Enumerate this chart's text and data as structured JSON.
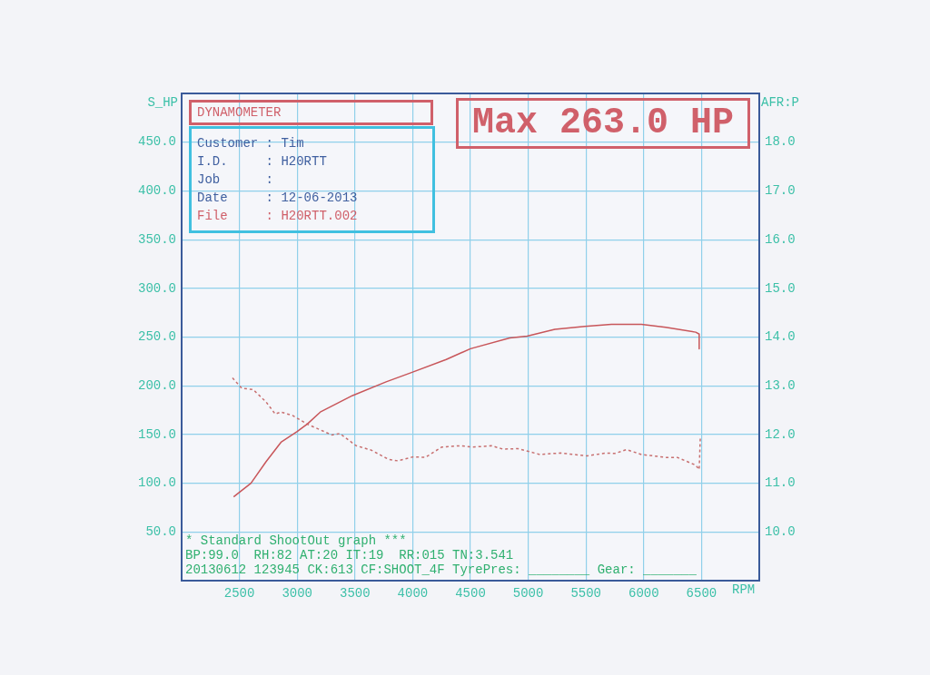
{
  "chart_data": {
    "type": "line",
    "title": "DYNAMOMETER",
    "ylabel": "S_HP",
    "y2label": "AFR:P",
    "xlabel": "RPM",
    "annotations": [
      "Max 263.0 HP",
      "Customer : Tim",
      "I.D.     : H20RTT",
      "Job      :",
      "Date     : 12-06-2013",
      "File     : H20RTT.002",
      "* Standard ShootOut graph ***",
      "BP:99.0  RH:82 AT:20 IT:19  RR:015 TN:3.541",
      "20130612 123945 CK:613 CF:SHOOT_4F TyrePres: ________ Gear: _______"
    ],
    "series": [
      {
        "color": "#c8565a",
        "line_style": "solid",
        "x": [
          2450,
          2600,
          2730,
          2860,
          3000,
          3090,
          3200,
          3480,
          3770,
          4000,
          4290,
          4500,
          4840,
          4990,
          5230,
          5490,
          5720,
          5980,
          6190,
          6450,
          6480,
          6480
        ],
        "values": [
          86,
          100,
          122,
          142,
          153,
          161,
          173,
          190,
          204,
          214,
          227,
          238,
          249,
          251,
          258,
          261,
          263,
          263,
          260,
          255,
          253,
          238
        ]
      },
      {
        "color": "#c87070",
        "line_style": "dashed",
        "axis": "y2",
        "x": [
          2440,
          2520,
          2620,
          2730,
          2810,
          2860,
          2960,
          3090,
          3300,
          3370,
          3510,
          3640,
          3790,
          3870,
          4000,
          4110,
          4250,
          4420,
          4520,
          4680,
          4780,
          4910,
          5100,
          5280,
          5510,
          5670,
          5750,
          5850,
          5980,
          6190,
          6290,
          6450,
          6480,
          6490
        ],
        "values": [
          13.16,
          12.95,
          12.92,
          12.67,
          12.42,
          12.46,
          12.39,
          12.21,
          11.99,
          12.02,
          11.77,
          11.68,
          11.49,
          11.46,
          11.54,
          11.53,
          11.74,
          11.77,
          11.74,
          11.77,
          11.7,
          11.71,
          11.59,
          11.62,
          11.56,
          11.62,
          11.61,
          11.69,
          11.59,
          11.53,
          11.53,
          11.37,
          11.28,
          11.96
        ]
      }
    ],
    "xlim": [
      2000,
      7000
    ],
    "xticks": [
      2500,
      3000,
      3500,
      4000,
      4500,
      5000,
      5500,
      6000,
      6500
    ],
    "ylim": [
      0,
      500
    ],
    "yticks": [
      {
        "value": 50,
        "label": "50.0"
      },
      {
        "value": 100,
        "label": "100.0"
      },
      {
        "value": 150,
        "label": "150.0"
      },
      {
        "value": 200,
        "label": "200.0"
      },
      {
        "value": 250,
        "label": "250.0"
      },
      {
        "value": 300,
        "label": "300.0"
      },
      {
        "value": 350,
        "label": "350.0"
      },
      {
        "value": 400,
        "label": "400.0"
      },
      {
        "value": 450,
        "label": "450.0"
      }
    ],
    "y2lim": [
      9,
      19
    ],
    "y2ticks": [
      {
        "value": 10,
        "label": "10.0"
      },
      {
        "value": 11,
        "label": "11.0"
      },
      {
        "value": 12,
        "label": "12.0"
      },
      {
        "value": 13,
        "label": "13.0"
      },
      {
        "value": 14,
        "label": "14.0"
      },
      {
        "value": 15,
        "label": "15.0"
      },
      {
        "value": 16,
        "label": "16.0"
      },
      {
        "value": 17,
        "label": "17.0"
      },
      {
        "value": 18,
        "label": "18.0"
      }
    ],
    "grid": true,
    "legend": false,
    "marker": "none"
  }
}
